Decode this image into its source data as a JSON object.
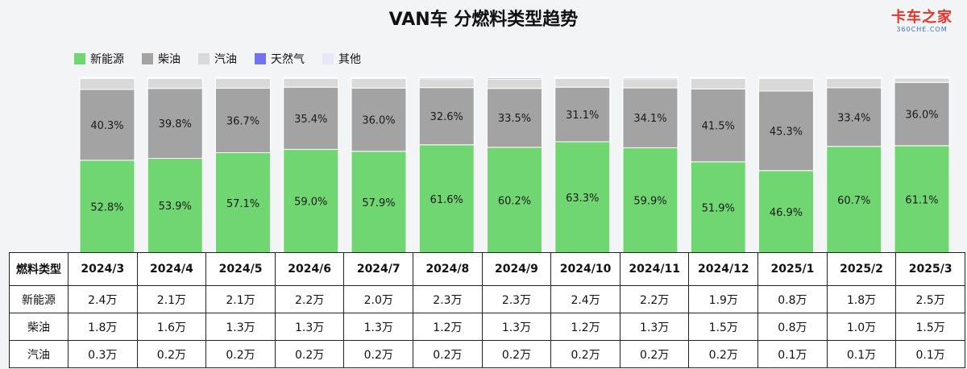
{
  "title": "VAN车 分燃料类型趋势",
  "logo": {
    "main": "卡车之家",
    "sub": "360CHE.COM"
  },
  "colors": {
    "新能源": "#6fd672",
    "柴油": "#a3a3a3",
    "汽油": "#d9d9d9",
    "天然气": "#7373f0",
    "其他": "#e6e8f7"
  },
  "legend": [
    {
      "name": "新能源",
      "color": "#6fd672"
    },
    {
      "name": "柴油",
      "color": "#a3a3a3"
    },
    {
      "name": "汽油",
      "color": "#d9d9d9"
    },
    {
      "name": "天然气",
      "color": "#7373f0"
    },
    {
      "name": "其他",
      "color": "#e6e8f7"
    }
  ],
  "chart_data": {
    "type": "bar",
    "stacked": true,
    "title": "VAN车 分燃料类型趋势",
    "categories": [
      "2024/3",
      "2024/4",
      "2024/5",
      "2024/6",
      "2024/7",
      "2024/8",
      "2024/9",
      "2024/10",
      "2024/11",
      "2024/12",
      "2025/1",
      "2025/2",
      "2025/3"
    ],
    "ylim": [
      0,
      100
    ],
    "legend_position": "top-left",
    "series": [
      {
        "name": "新能源",
        "values": [
          52.8,
          53.9,
          57.1,
          59.0,
          57.9,
          61.6,
          60.2,
          63.3,
          59.9,
          51.9,
          46.9,
          60.7,
          61.1
        ],
        "labels": [
          "52.8%",
          "53.9%",
          "57.1%",
          "59.0%",
          "57.9%",
          "61.6%",
          "60.2%",
          "63.3%",
          "59.9%",
          "51.9%",
          "46.9%",
          "60.7%",
          "61.1%"
        ]
      },
      {
        "name": "柴油",
        "values": [
          40.3,
          39.8,
          36.7,
          35.4,
          36.0,
          32.6,
          33.5,
          31.1,
          34.1,
          41.5,
          45.3,
          33.4,
          36.0
        ],
        "labels": [
          "40.3%",
          "39.8%",
          "36.7%",
          "35.4%",
          "36.0%",
          "32.6%",
          "33.5%",
          "31.1%",
          "34.1%",
          "41.5%",
          "45.3%",
          "33.4%",
          "36.0%"
        ]
      },
      {
        "name": "汽油",
        "values": [
          6.2,
          5.6,
          5.5,
          4.9,
          5.4,
          5.0,
          5.3,
          4.9,
          5.2,
          5.9,
          7.2,
          5.3,
          2.5
        ]
      },
      {
        "name": "天然气",
        "values": [
          0.5,
          0.5,
          0.5,
          0.5,
          0.5,
          0.6,
          0.7,
          0.5,
          0.6,
          0.5,
          0.4,
          0.4,
          0.3
        ]
      },
      {
        "name": "其他",
        "values": [
          0.2,
          0.2,
          0.2,
          0.2,
          0.2,
          0.2,
          0.3,
          0.2,
          0.2,
          0.2,
          0.2,
          0.2,
          0.1
        ]
      }
    ]
  },
  "table": {
    "corner": "燃料类型",
    "columns": [
      "2024/3",
      "2024/4",
      "2024/5",
      "2024/6",
      "2024/7",
      "2024/8",
      "2024/9",
      "2024/10",
      "2024/11",
      "2024/12",
      "2025/1",
      "2025/2",
      "2025/3"
    ],
    "rows": [
      {
        "label": "新能源",
        "cells": [
          "2.4万",
          "2.1万",
          "2.1万",
          "2.2万",
          "2.0万",
          "2.3万",
          "2.3万",
          "2.4万",
          "2.2万",
          "1.9万",
          "0.8万",
          "1.8万",
          "2.5万"
        ]
      },
      {
        "label": "柴油",
        "cells": [
          "1.8万",
          "1.6万",
          "1.3万",
          "1.3万",
          "1.3万",
          "1.2万",
          "1.3万",
          "1.2万",
          "1.3万",
          "1.5万",
          "0.8万",
          "1.0万",
          "1.5万"
        ]
      },
      {
        "label": "汽油",
        "cells": [
          "0.3万",
          "0.2万",
          "0.2万",
          "0.2万",
          "0.2万",
          "0.2万",
          "0.2万",
          "0.2万",
          "0.2万",
          "0.2万",
          "0.1万",
          "0.1万",
          "0.1万"
        ]
      }
    ]
  }
}
